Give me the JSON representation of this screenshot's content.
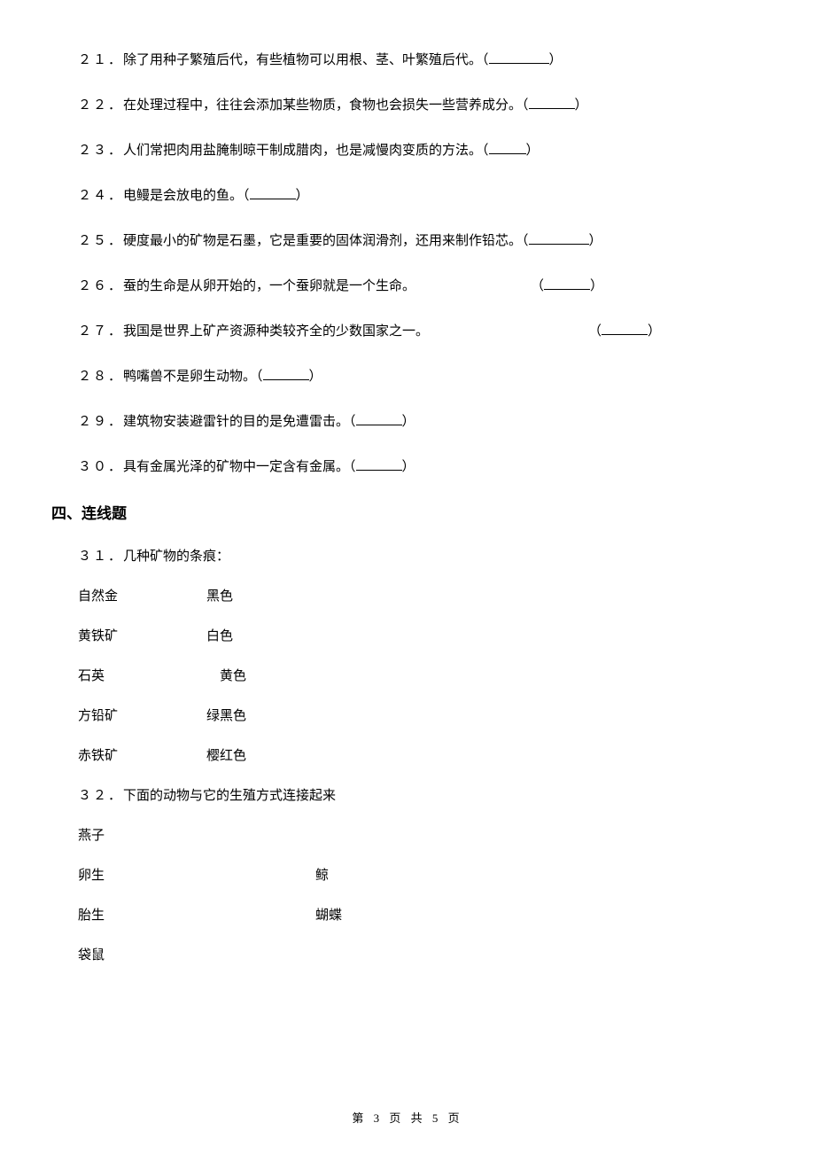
{
  "colors": {
    "text": "#000000",
    "bg": "#ffffff"
  },
  "fonts": {
    "body_size": 15,
    "title_size": 17,
    "footer_size": 13
  },
  "questions": [
    {
      "num": "２１．",
      "text": "除了用种子繁殖后代，有些植物可以用根、茎、叶繁殖后代。（",
      "close": "）",
      "blank": "long"
    },
    {
      "num": "２２．",
      "text": "在处理过程中，往往会添加某些物质，食物也会损失一些营养成分。（",
      "close": "）",
      "blank": "med"
    },
    {
      "num": "２３．",
      "text": "人们常把肉用盐腌制晾干制成腊肉，也是减慢肉变质的方法。（",
      "close": "）",
      "blank": "short"
    },
    {
      "num": "２４．",
      "text": "电鳗是会放电的鱼。（",
      "close": "）",
      "blank": "med"
    },
    {
      "num": "２５．",
      "text": "硬度最小的矿物是石墨，它是重要的固体润滑剂，还用来制作铅芯。（",
      "close": "）",
      "blank": "long"
    },
    {
      "num": "２６．",
      "text": "蚕的生命是从卵开始的，一个蚕卵就是一个生命。",
      "close": "）",
      "blank": "med",
      "gap": "wide",
      "openparen": "（"
    },
    {
      "num": "２７．",
      "text": "我国是世界上矿产资源种类较齐全的少数国家之一。",
      "close": "）",
      "blank": "med",
      "gap": "wider",
      "openparen": "（"
    },
    {
      "num": "２８．",
      "text": "鸭嘴兽不是卵生动物。（",
      "close": "）",
      "blank": "med"
    },
    {
      "num": "２９．",
      "text": "建筑物安装避雷针的目的是免遭雷击。（",
      "close": "）",
      "blank": "med"
    },
    {
      "num": "３０．",
      "text": "具有金属光泽的矿物中一定含有金属。（",
      "close": "）",
      "blank": "med"
    }
  ],
  "section": "四、连线题",
  "q31": {
    "num": "３１．",
    "title": "几种矿物的条痕：",
    "rows": [
      {
        "l": "自然金",
        "r": "黑色"
      },
      {
        "l": "黄铁矿",
        "r": "白色"
      },
      {
        "l": "石英",
        "r": "　黄色"
      },
      {
        "l": "方铅矿",
        "r": "绿黑色"
      },
      {
        "l": "赤铁矿",
        "r": "樱红色"
      }
    ]
  },
  "q32": {
    "num": "３２．",
    "title": "下面的动物与它的生殖方式连接起来",
    "rows": [
      {
        "l": "燕子",
        "r": ""
      },
      {
        "l": "卵生",
        "r": "鲸"
      },
      {
        "l": "胎生",
        "r": "蝴蝶"
      },
      {
        "l": "袋鼠",
        "r": ""
      }
    ]
  },
  "footer": "第 3 页 共 5 页"
}
